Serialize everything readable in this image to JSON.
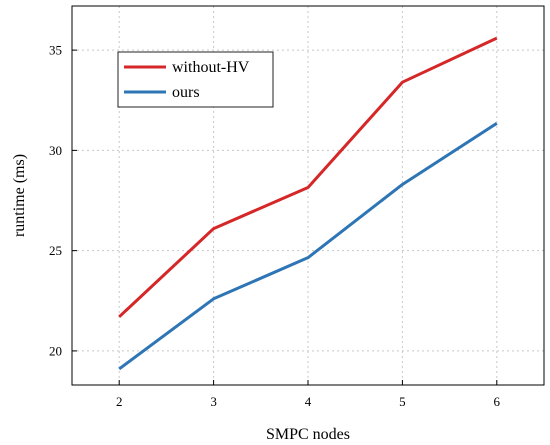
{
  "chart_data": {
    "type": "line",
    "title": "",
    "xlabel": "SMPC nodes",
    "ylabel": "runtime (ms)",
    "x": [
      2,
      3,
      4,
      5,
      6
    ],
    "xlim": [
      1.5,
      6.5
    ],
    "ylim": [
      18.3,
      37.2
    ],
    "xticks": [
      2,
      3,
      4,
      5,
      6
    ],
    "yticks": [
      20,
      25,
      30,
      35
    ],
    "grid": true,
    "legend_position": "top-left",
    "series": [
      {
        "name": "without-HV",
        "color": "#d62728",
        "values": [
          21.7,
          26.1,
          28.15,
          33.4,
          35.6
        ]
      },
      {
        "name": "ours",
        "color": "#2e75b6",
        "values": [
          19.1,
          22.6,
          24.65,
          28.3,
          31.35
        ]
      }
    ]
  }
}
